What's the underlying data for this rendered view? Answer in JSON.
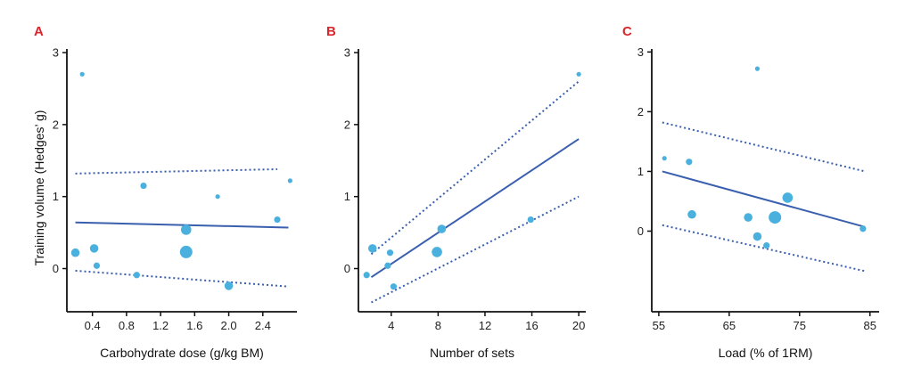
{
  "colors": {
    "point": "#4ab0dd",
    "line": "#3a5fae",
    "letter": "#d9262c",
    "axis": "#111111"
  },
  "ylabel": "Training volume (Hedges’ g)",
  "chart_data": [
    {
      "type": "scatter",
      "letter": "A",
      "xlabel": "Carbohydrate dose (g/kg BM)",
      "xlim": [
        0.1,
        2.8
      ],
      "ylim": [
        -0.6,
        3.05
      ],
      "xticks": [
        0.4,
        0.8,
        1.2,
        1.6,
        2.0,
        2.4
      ],
      "xtick_labels": [
        "0.4",
        "0.8",
        "1.2",
        "1.6",
        "2.0",
        "2.4"
      ],
      "yticks": [
        0,
        1,
        2,
        3
      ],
      "ytick_labels": [
        "0",
        "1",
        "2",
        "3"
      ],
      "points": [
        {
          "x": 0.28,
          "y": 2.7,
          "w": 1
        },
        {
          "x": 0.2,
          "y": 0.22,
          "w": 3
        },
        {
          "x": 0.42,
          "y": 0.28,
          "w": 3
        },
        {
          "x": 0.45,
          "y": 0.04,
          "w": 2
        },
        {
          "x": 0.92,
          "y": -0.09,
          "w": 2
        },
        {
          "x": 1.0,
          "y": 1.15,
          "w": 2
        },
        {
          "x": 1.5,
          "y": 0.54,
          "w": 4
        },
        {
          "x": 1.5,
          "y": 0.23,
          "w": 5
        },
        {
          "x": 1.87,
          "y": 1.0,
          "w": 1
        },
        {
          "x": 2.0,
          "y": -0.24,
          "w": 3
        },
        {
          "x": 2.57,
          "y": 0.68,
          "w": 2
        },
        {
          "x": 2.72,
          "y": 1.22,
          "w": 1
        }
      ],
      "fit": {
        "x": [
          0.2,
          2.7
        ],
        "y": [
          0.64,
          0.57
        ]
      },
      "ci_upper": {
        "x": [
          0.2,
          2.57
        ],
        "y": [
          1.32,
          1.38
        ]
      },
      "ci_lower": {
        "x": [
          0.2,
          2.7
        ],
        "y": [
          -0.03,
          -0.25
        ]
      }
    },
    {
      "type": "scatter",
      "letter": "B",
      "xlabel": "Number of sets",
      "xlim": [
        1.2,
        20.6
      ],
      "ylim": [
        -0.6,
        3.05
      ],
      "xticks": [
        4,
        8,
        12,
        16,
        20
      ],
      "xtick_labels": [
        "4",
        "8",
        "12",
        "16",
        "20"
      ],
      "yticks": [
        0,
        1,
        2,
        3
      ],
      "ytick_labels": [
        "0",
        "1",
        "2",
        "3"
      ],
      "points": [
        {
          "x": 2.4,
          "y": 0.28,
          "w": 3
        },
        {
          "x": 1.9,
          "y": -0.09,
          "w": 2
        },
        {
          "x": 3.9,
          "y": 0.22,
          "w": 2
        },
        {
          "x": 3.7,
          "y": 0.04,
          "w": 2
        },
        {
          "x": 4.2,
          "y": -0.25,
          "w": 2
        },
        {
          "x": 7.9,
          "y": 0.23,
          "w": 4
        },
        {
          "x": 8.3,
          "y": 0.55,
          "w": 3
        },
        {
          "x": 15.9,
          "y": 0.68,
          "w": 2
        },
        {
          "x": 20.0,
          "y": 2.7,
          "w": 1
        }
      ],
      "fit": {
        "x": [
          2.3,
          20.0
        ],
        "y": [
          -0.12,
          1.8
        ]
      },
      "ci_upper": {
        "x": [
          2.3,
          20.0
        ],
        "y": [
          0.2,
          2.6
        ]
      },
      "ci_lower": {
        "x": [
          2.3,
          20.0
        ],
        "y": [
          -0.47,
          1.0
        ]
      }
    },
    {
      "type": "scatter",
      "letter": "C",
      "xlabel": "Load (% of 1RM)",
      "xlim": [
        54,
        86.3
      ],
      "ylim": [
        -1.35,
        3.05
      ],
      "xticks": [
        55,
        65,
        75,
        85
      ],
      "xtick_labels": [
        "55",
        "65",
        "75",
        "85"
      ],
      "yticks": [
        0,
        1,
        2,
        3
      ],
      "ytick_labels": [
        "0",
        "1",
        "2",
        "3"
      ],
      "points": [
        {
          "x": 55.8,
          "y": 1.22,
          "w": 1
        },
        {
          "x": 59.3,
          "y": 1.16,
          "w": 2
        },
        {
          "x": 59.7,
          "y": 0.28,
          "w": 3
        },
        {
          "x": 67.7,
          "y": 0.23,
          "w": 3
        },
        {
          "x": 69.0,
          "y": 2.72,
          "w": 1
        },
        {
          "x": 69.0,
          "y": -0.09,
          "w": 3
        },
        {
          "x": 70.3,
          "y": -0.24,
          "w": 2
        },
        {
          "x": 71.5,
          "y": 0.23,
          "w": 5
        },
        {
          "x": 73.3,
          "y": 0.56,
          "w": 4
        },
        {
          "x": 84.0,
          "y": 0.04,
          "w": 2
        }
      ],
      "fit": {
        "x": [
          55.5,
          84.3
        ],
        "y": [
          1.0,
          0.07
        ]
      },
      "ci_upper": {
        "x": [
          55.5,
          84.3
        ],
        "y": [
          1.82,
          1.0
        ]
      },
      "ci_lower": {
        "x": [
          55.5,
          84.3
        ],
        "y": [
          0.1,
          -0.67
        ]
      }
    }
  ]
}
